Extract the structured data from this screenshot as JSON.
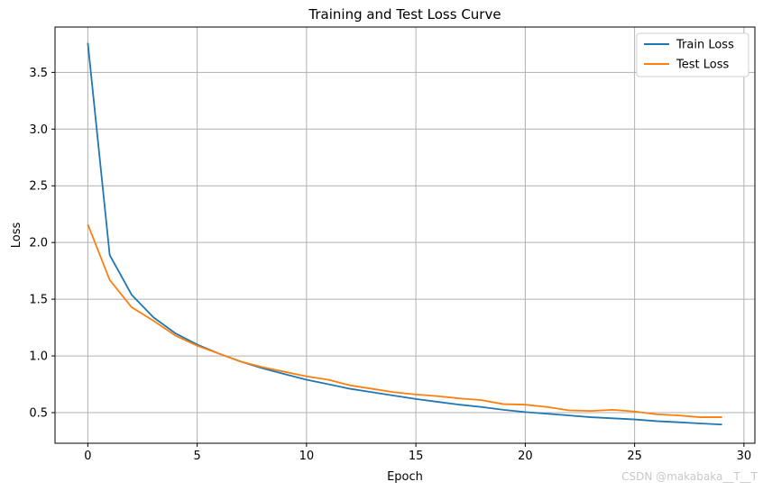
{
  "chart_data": {
    "type": "line",
    "title": "Training and Test Loss Curve",
    "xlabel": "Epoch",
    "ylabel": "Loss",
    "xlim": [
      -1.5,
      30.5
    ],
    "ylim": [
      0.23,
      3.9
    ],
    "xticks": [
      0,
      5,
      10,
      15,
      20,
      25,
      30
    ],
    "yticks": [
      0.5,
      1.0,
      1.5,
      2.0,
      2.5,
      3.0,
      3.5
    ],
    "xtick_labels": [
      "0",
      "5",
      "10",
      "15",
      "20",
      "25",
      "30"
    ],
    "ytick_labels": [
      "0.5",
      "1.0",
      "1.5",
      "2.0",
      "2.5",
      "3.0",
      "3.5"
    ],
    "grid": true,
    "legend_position": "top-right",
    "x": [
      0,
      1,
      2,
      3,
      4,
      5,
      6,
      7,
      8,
      9,
      10,
      11,
      12,
      13,
      14,
      15,
      16,
      17,
      18,
      19,
      20,
      21,
      22,
      23,
      24,
      25,
      26,
      27,
      28,
      29
    ],
    "series": [
      {
        "name": "Train Loss",
        "color": "#1f77b4",
        "values": [
          3.76,
          1.89,
          1.54,
          1.34,
          1.2,
          1.1,
          1.02,
          0.95,
          0.89,
          0.84,
          0.79,
          0.75,
          0.71,
          0.68,
          0.65,
          0.62,
          0.595,
          0.57,
          0.55,
          0.525,
          0.505,
          0.49,
          0.475,
          0.46,
          0.45,
          0.44,
          0.425,
          0.415,
          0.405,
          0.395
        ]
      },
      {
        "name": "Test Loss",
        "color": "#ff7f0e",
        "values": [
          2.16,
          1.67,
          1.43,
          1.31,
          1.18,
          1.09,
          1.02,
          0.95,
          0.9,
          0.86,
          0.82,
          0.79,
          0.74,
          0.71,
          0.68,
          0.66,
          0.645,
          0.625,
          0.61,
          0.575,
          0.57,
          0.55,
          0.52,
          0.515,
          0.525,
          0.51,
          0.485,
          0.475,
          0.46,
          0.46
        ]
      }
    ]
  },
  "watermark": "CSDN @makabaka__T__T"
}
